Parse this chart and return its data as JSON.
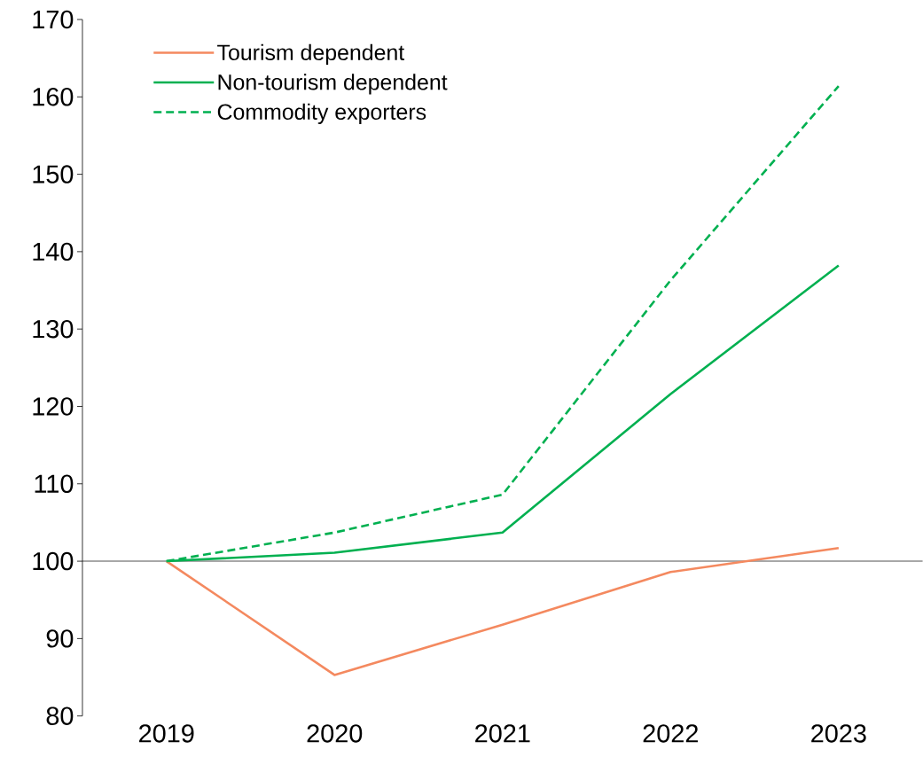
{
  "chart_data": {
    "type": "line",
    "categories": [
      "2019",
      "2020",
      "2021",
      "2022",
      "2023"
    ],
    "series": [
      {
        "name": "Tourism dependent",
        "color": "#f4895f",
        "values": [
          100,
          85.3,
          91.8,
          98.6,
          101.7
        ]
      },
      {
        "name": "Non-tourism dependent",
        "color": "#00b050",
        "values": [
          100,
          101.1,
          103.7,
          121.6,
          138.2
        ]
      },
      {
        "name": "Commodity exporters",
        "color": "#00b050",
        "line_style": "dashed",
        "values": [
          100,
          103.7,
          108.6,
          136.3,
          161.4
        ]
      }
    ],
    "ylim": [
      80,
      170
    ],
    "yticks": [
      80,
      90,
      100,
      110,
      120,
      130,
      140,
      150,
      160,
      170
    ],
    "ref_lines": [
      {
        "axis": "y",
        "value": 100
      }
    ],
    "legend": "top left",
    "grid": false
  }
}
